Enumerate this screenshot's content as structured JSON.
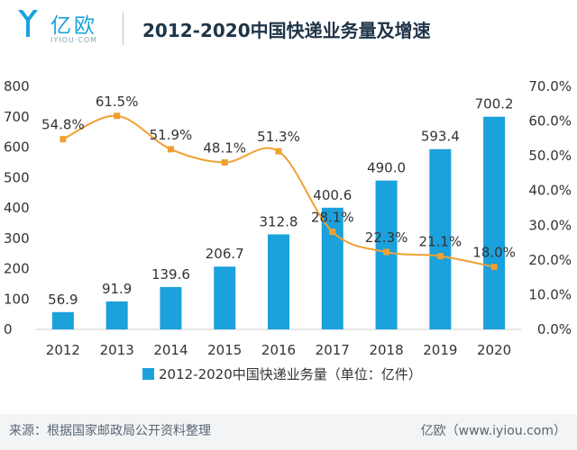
{
  "header": {
    "logo_text": "亿欧",
    "logo_sub": "IYIOU·COM",
    "title": "2012-2020中国快递业务量及增速"
  },
  "footer": {
    "source": "来源：根据国家邮政局公开资料整理",
    "brand": "亿欧（www.iyiou.com）"
  },
  "colors": {
    "bar": "#1ba1dc",
    "line": "#f0a031",
    "text": "#333333",
    "axis": "#cccccc",
    "header_title": "#1f3447"
  },
  "chart_data": {
    "type": "bar",
    "title": "",
    "categories": [
      "2012",
      "2013",
      "2014",
      "2015",
      "2016",
      "2017",
      "2018",
      "2019",
      "2020"
    ],
    "series": [
      {
        "name": "2012-2020中国快递业务量（单位：亿件）",
        "type": "bar",
        "axis": "left",
        "values": [
          56.9,
          91.9,
          139.6,
          206.7,
          312.8,
          400.6,
          490.0,
          593.4,
          700.2
        ],
        "labels": [
          "56.9",
          "91.9",
          "139.6",
          "206.7",
          "312.8",
          "400.6",
          "490.0",
          "593.4",
          "700.2"
        ]
      },
      {
        "type": "line",
        "axis": "right",
        "values": [
          54.8,
          61.5,
          51.9,
          48.1,
          51.3,
          28.1,
          22.3,
          21.1,
          18.0
        ],
        "labels": [
          "54.8%",
          "61.5%",
          "51.9%",
          "48.1%",
          "51.3%",
          "28.1%",
          "22.3%",
          "21.1%",
          "18.0%"
        ]
      }
    ],
    "y_left": {
      "min": 0,
      "max": 800,
      "ticks": [
        "0",
        "100",
        "200",
        "300",
        "400",
        "500",
        "600",
        "700",
        "800"
      ]
    },
    "y_right": {
      "min": 0,
      "max": 70,
      "ticks": [
        "0.0%",
        "10.0%",
        "20.0%",
        "30.0%",
        "40.0%",
        "50.0%",
        "60.0%",
        "70.0%"
      ]
    },
    "legend_position": "bottom",
    "grid": false
  }
}
